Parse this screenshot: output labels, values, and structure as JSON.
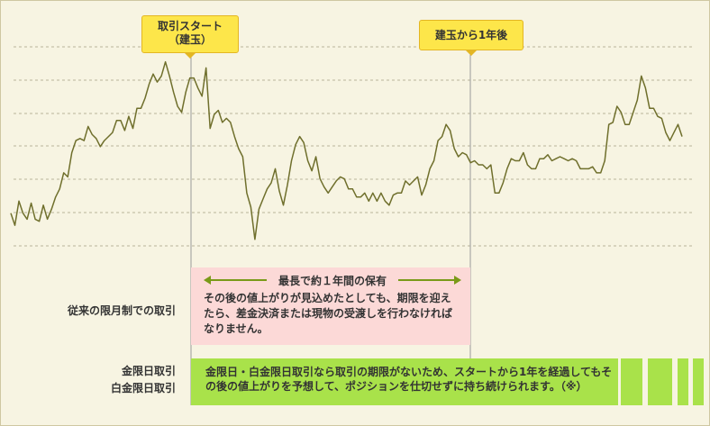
{
  "chart_data": {
    "type": "line",
    "title": "",
    "xlabel": "",
    "ylabel": "",
    "grid": true,
    "ylim": [
      0,
      100
    ],
    "series": [
      {
        "color": "#6f6f2c",
        "values": [
          22,
          16,
          28,
          22,
          19,
          27,
          19,
          18,
          26,
          19,
          24,
          30,
          34,
          42,
          40,
          52,
          58,
          59,
          58,
          65,
          61,
          59,
          55,
          58,
          60,
          62,
          68,
          68,
          63,
          70,
          64,
          74,
          74,
          79,
          86,
          91,
          87,
          90,
          97,
          90,
          82,
          75,
          72,
          82,
          89,
          89,
          84,
          80,
          94,
          64,
          71,
          73,
          67,
          69,
          67,
          60,
          54,
          50,
          32,
          25,
          9,
          24,
          29,
          34,
          37,
          44,
          33,
          26,
          36,
          48,
          56,
          60,
          57,
          48,
          43,
          50,
          39,
          35,
          32,
          35,
          38,
          40,
          39,
          34,
          34,
          30,
          30,
          32,
          28,
          32,
          28,
          32,
          28,
          26,
          31,
          32,
          32,
          38,
          36,
          38,
          40,
          31,
          36,
          44,
          48,
          58,
          60,
          66,
          63,
          54,
          50,
          52,
          51,
          47,
          48,
          46,
          46,
          44,
          46,
          32,
          32,
          37,
          44,
          49,
          48,
          48,
          52,
          46,
          44,
          44,
          49,
          49,
          51,
          48,
          49,
          50,
          49,
          48,
          49,
          48,
          44,
          44,
          44,
          45,
          42,
          42,
          48,
          66,
          67,
          75,
          72,
          66,
          66,
          72,
          78,
          90,
          84,
          74,
          74,
          70,
          69,
          62,
          58,
          62,
          66,
          60
        ]
      }
    ],
    "annotations": {
      "start_label": "取引スタート\n（建玉）",
      "after_label": "建玉から1年後"
    }
  },
  "traditional": {
    "label": "従来の限月制での取引",
    "title": "最長で約１年間の保有",
    "text": "その後の値上がりが見込めたとしても、期限を迎えたら、差金決済または現物の受渡しを行わなければなりません。"
  },
  "kin": {
    "label": "金限日取引\n白金限日取引",
    "text": "金限日・白金限日取引なら取引の期限がないため、スタートから1年を経過してもその後の値上がりを予想して、ポジションを仕切せずに持ち続けられます。（※）"
  },
  "colors": {
    "background": "#f7f4e2",
    "line": "#6f6f2c",
    "callout": "#fde64a",
    "pink_box": "#fcd9d7",
    "green_box": "#a9e24a",
    "arrow": "#7a9a18"
  }
}
